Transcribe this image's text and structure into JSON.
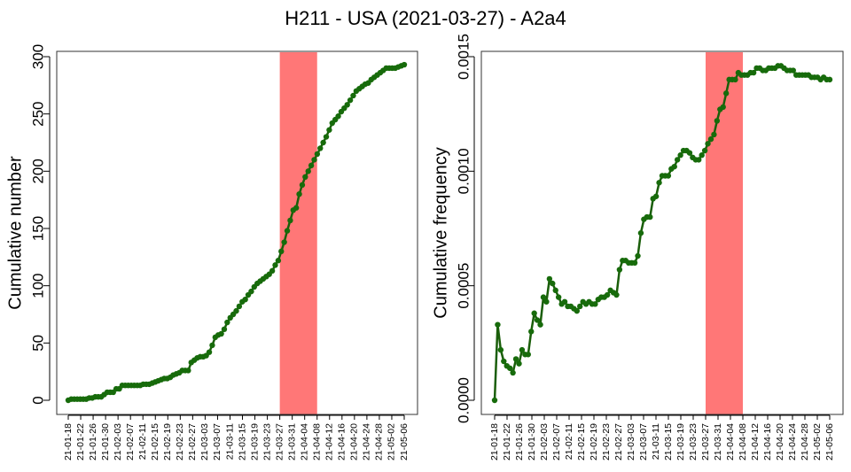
{
  "title": "H211 - USA (2021-03-27) - A2a4",
  "colors": {
    "line": "#1a5e0a",
    "point": "#176b0b",
    "highlight": "#ff7777"
  },
  "chart_data": [
    {
      "type": "line",
      "ylabel": "Cumulative number",
      "ylim": [
        0,
        300
      ],
      "yticks": [
        0,
        50,
        100,
        150,
        200,
        250,
        300
      ],
      "highlight": {
        "from": "21-03-27",
        "to": "21-04-08"
      },
      "xticks": [
        "21-01-18",
        "21-01-22",
        "21-01-26",
        "21-01-30",
        "21-02-03",
        "21-02-07",
        "21-02-11",
        "21-02-15",
        "21-02-19",
        "21-02-23",
        "21-02-27",
        "21-03-03",
        "21-03-07",
        "21-03-11",
        "21-03-15",
        "21-03-19",
        "21-03-23",
        "21-03-27",
        "21-03-31",
        "21-04-04",
        "21-04-08",
        "21-04-12",
        "21-04-16",
        "21-04-20",
        "21-04-24",
        "21-04-28",
        "21-05-02",
        "21-05-06"
      ],
      "series": [
        {
          "values": [
            0,
            1,
            1,
            1,
            1,
            1,
            1,
            2,
            2,
            3,
            3,
            3,
            5,
            7,
            7,
            7,
            10,
            10,
            13,
            13,
            13,
            13,
            13,
            13,
            13,
            14,
            14,
            14,
            15,
            16,
            17,
            18,
            19,
            19,
            20,
            22,
            23,
            24,
            26,
            26,
            26,
            33,
            35,
            37,
            38,
            38,
            39,
            42,
            48,
            55,
            57,
            58,
            62,
            68,
            72,
            75,
            78,
            82,
            86,
            88,
            92,
            95,
            99,
            102,
            104,
            106,
            108,
            110,
            113,
            118,
            122,
            130,
            138,
            148,
            157,
            166,
            168,
            180,
            188,
            195,
            200,
            205,
            210,
            215,
            220,
            225,
            230,
            236,
            242,
            245,
            248,
            252,
            255,
            258,
            262,
            266,
            270,
            272,
            274,
            276,
            277,
            280,
            282,
            284,
            286,
            288,
            290,
            290,
            290,
            290,
            291,
            292,
            293
          ]
        }
      ]
    },
    {
      "type": "line",
      "ylabel": "Cumulative frequency",
      "ylim": [
        0,
        0.0015
      ],
      "yticks": [
        "0.0000",
        "0.0005",
        "0.0010",
        "0.0015"
      ],
      "yticks_values": [
        0,
        0.0005,
        0.001,
        0.0015
      ],
      "highlight": {
        "from": "21-03-27",
        "to": "21-04-08"
      },
      "xticks": [
        "21-01-18",
        "21-01-22",
        "21-01-26",
        "21-01-30",
        "21-02-03",
        "21-02-07",
        "21-02-11",
        "21-02-15",
        "21-02-19",
        "21-02-23",
        "21-02-27",
        "21-03-03",
        "21-03-07",
        "21-03-11",
        "21-03-15",
        "21-03-19",
        "21-03-23",
        "21-03-27",
        "21-03-31",
        "21-04-04",
        "21-04-08",
        "21-04-12",
        "21-04-16",
        "21-04-20",
        "21-04-24",
        "21-04-28",
        "21-05-02",
        "21-05-06"
      ],
      "series": [
        {
          "values": [
            0,
            0.00033,
            0.00022,
            0.00017,
            0.00015,
            0.00014,
            0.00012,
            0.00018,
            0.00016,
            0.00022,
            0.0002,
            0.0002,
            0.0003,
            0.00038,
            0.00035,
            0.00033,
            0.00045,
            0.00043,
            0.00053,
            0.00051,
            0.00048,
            0.00045,
            0.00042,
            0.00043,
            0.00041,
            0.00041,
            0.0004,
            0.00039,
            0.00041,
            0.00043,
            0.00042,
            0.00043,
            0.00042,
            0.00042,
            0.00044,
            0.00045,
            0.00045,
            0.00046,
            0.00048,
            0.00047,
            0.00046,
            0.00057,
            0.00061,
            0.00061,
            0.0006,
            0.0006,
            0.0006,
            0.00063,
            0.00073,
            0.00079,
            0.0008,
            0.0008,
            0.00088,
            0.00089,
            0.00095,
            0.00098,
            0.00098,
            0.00098,
            0.00101,
            0.00102,
            0.00105,
            0.00107,
            0.00109,
            0.00109,
            0.00108,
            0.00106,
            0.00105,
            0.00105,
            0.00107,
            0.00109,
            0.00112,
            0.00114,
            0.00116,
            0.00122,
            0.00127,
            0.00128,
            0.00134,
            0.0014,
            0.0014,
            0.0014,
            0.00143,
            0.00142,
            0.00142,
            0.00142,
            0.00143,
            0.00143,
            0.00145,
            0.00145,
            0.00144,
            0.00144,
            0.00145,
            0.00145,
            0.00145,
            0.00146,
            0.00146,
            0.00145,
            0.00144,
            0.00144,
            0.00144,
            0.00142,
            0.00142,
            0.00142,
            0.00142,
            0.00142,
            0.00141,
            0.00141,
            0.00141,
            0.0014,
            0.00141,
            0.0014,
            0.0014
          ]
        }
      ]
    }
  ]
}
